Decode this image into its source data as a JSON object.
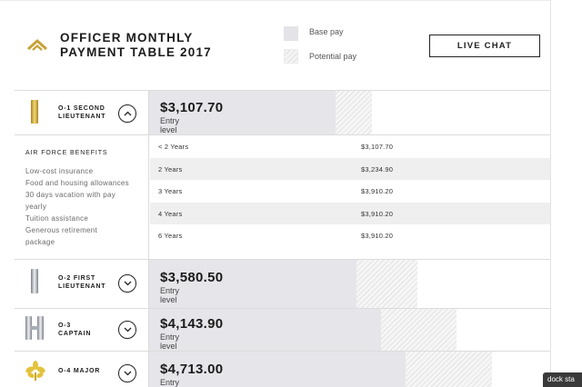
{
  "header": {
    "logo_icon": "chevron-rank-icon",
    "title_line1": "OFFICER MONTHLY",
    "title_line2": "PAYMENT TABLE 2017",
    "legend": {
      "base_label": "Base pay",
      "potential_label": "Potential pay"
    },
    "live_chat_label": "LIVE CHAT"
  },
  "ranks": [
    {
      "name_line1": "O-1 SECOND",
      "name_line2": "LIEUTENANT",
      "pay": "$3,107.70",
      "pay_label": "Entry level",
      "insignia": "gold-bar-icon",
      "toggle_icon": "chevron-up-icon",
      "expanded": true
    },
    {
      "name_line1": "O-2 FIRST",
      "name_line2": "LIEUTENANT",
      "pay": "$3,580.50",
      "pay_label": "Entry level",
      "insignia": "silver-bar-icon",
      "toggle_icon": "chevron-down-icon",
      "expanded": false
    },
    {
      "name_line1": "O-3",
      "name_line2": "CAPTAIN",
      "pay": "$4,143.90",
      "pay_label": "Entry level",
      "insignia": "double-silver-bar-icon",
      "toggle_icon": "chevron-down-icon",
      "expanded": false
    },
    {
      "name_line1": "O-4 MAJOR",
      "name_line2": "",
      "pay": "$4,713.00",
      "pay_label": "Entry level",
      "insignia": "gold-oak-leaf-icon",
      "toggle_icon": "chevron-down-icon",
      "expanded": false
    }
  ],
  "benefits": {
    "title": "AIR FORCE BENEFITS",
    "items": [
      "Low-cost insurance",
      "Food and housing allowances",
      "30 days vacation with pay",
      "yearly",
      "Tuition assistance",
      "Generous retirement",
      "package"
    ]
  },
  "pay_table": [
    {
      "years": "< 2 Years",
      "pay": "$3,107.70"
    },
    {
      "years": "2 Years",
      "pay": "$3,234.90"
    },
    {
      "years": "3 Years",
      "pay": "$3,910.20"
    },
    {
      "years": "4 Years",
      "pay": "$3,910.20"
    },
    {
      "years": "6 Years",
      "pay": "$3,910.20"
    }
  ],
  "dock_label": "dock sta",
  "colors": {
    "base_bar": "#e6e6ea",
    "gold": "#d4b13c",
    "silver": "#b9bdc3"
  }
}
